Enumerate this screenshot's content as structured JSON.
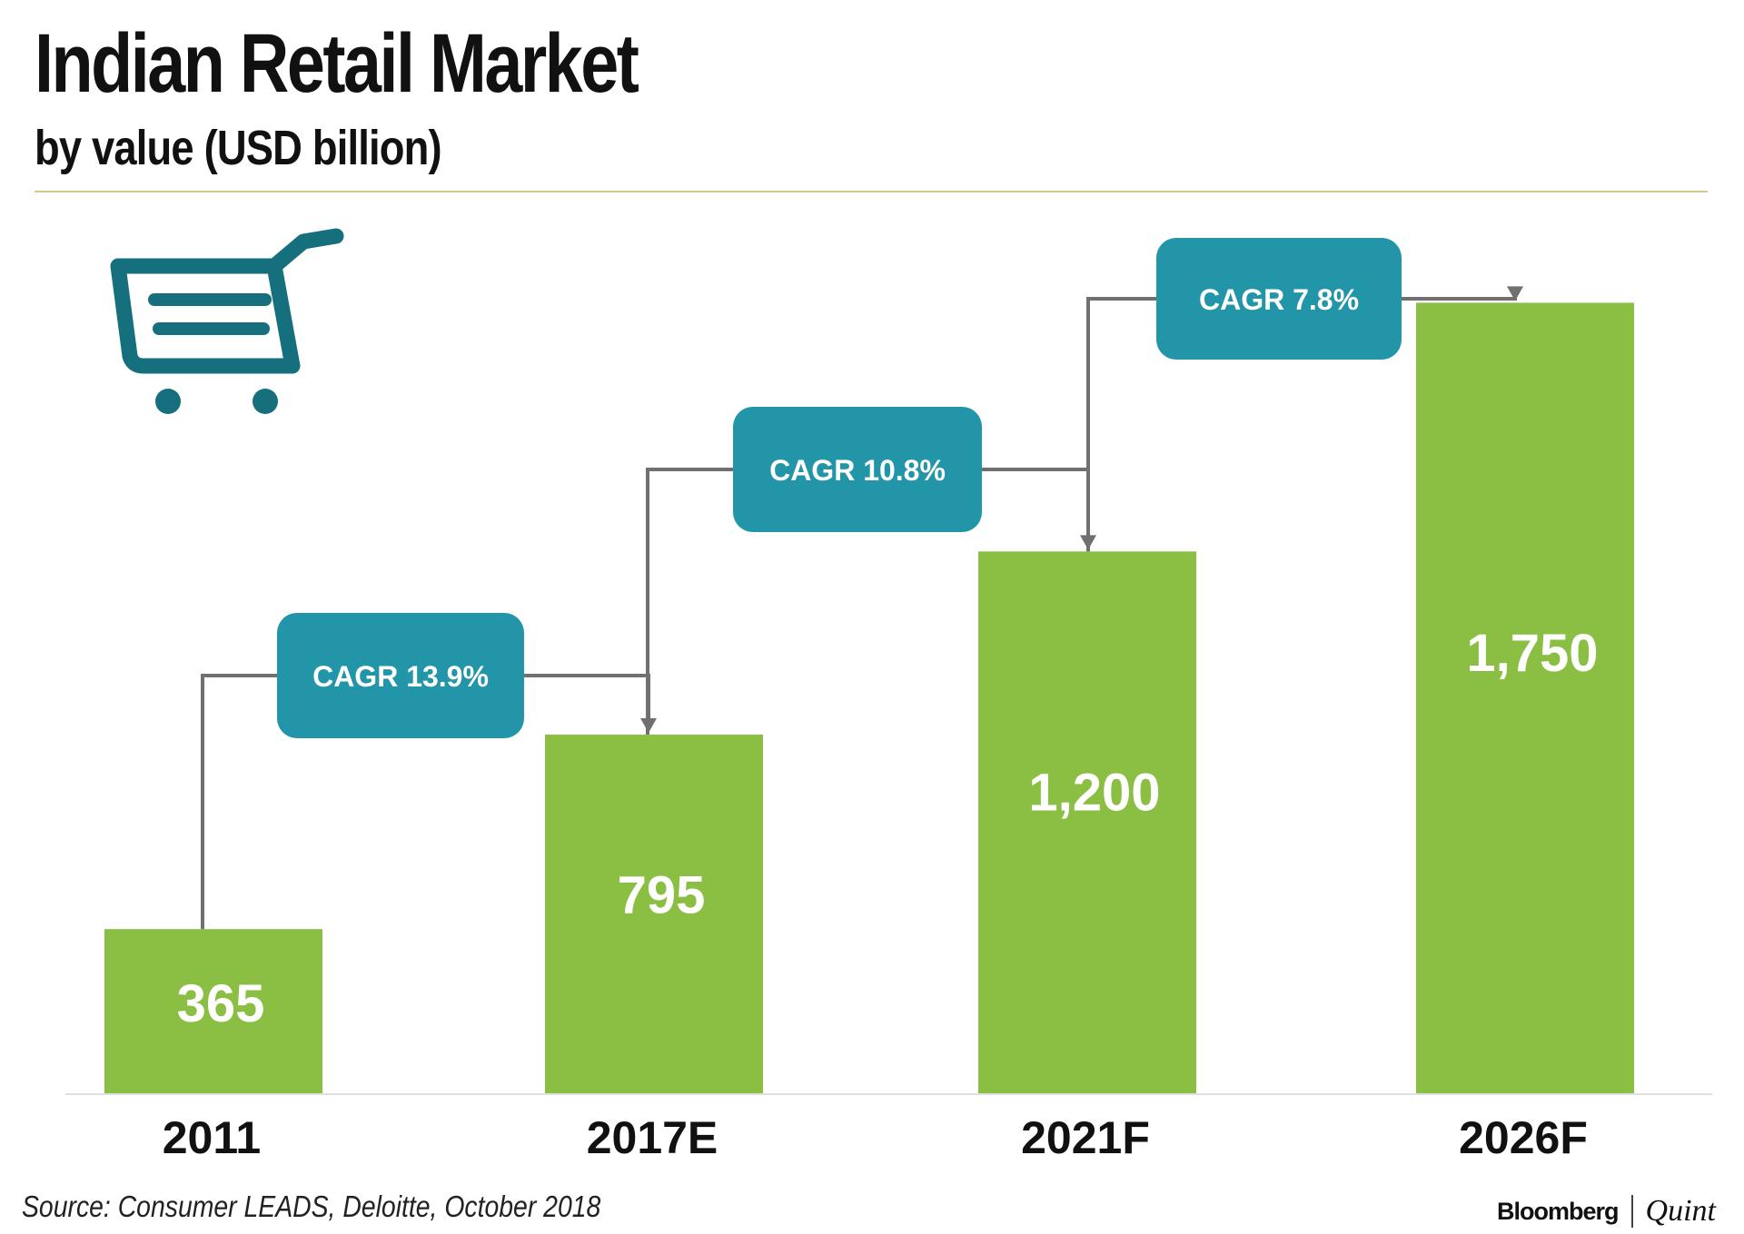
{
  "colors": {
    "bar": "#8abf43",
    "callout": "#2295a8",
    "cart": "#166f7c",
    "connector": "#707070",
    "rule": "#d9c78a"
  },
  "icon": "shopping-cart-icon",
  "source": "Source: Consumer LEADS, Deloitte, October 2018",
  "brand": {
    "name": "Bloomberg",
    "partner": "Quint"
  },
  "chart_data": {
    "type": "bar",
    "title": "Indian Retail Market",
    "subtitle": "by value (USD billion)",
    "categories": [
      "2011",
      "2017E",
      "2021F",
      "2026F"
    ],
    "values": [
      365,
      795,
      1200,
      1750
    ],
    "value_labels": [
      "365",
      "795",
      "1,200",
      "1,750"
    ],
    "ylim": [
      0,
      2050
    ],
    "grid": false,
    "annotations": [
      {
        "text": "CAGR 13.9%",
        "from": "2011",
        "to": "2017E"
      },
      {
        "text": "CAGR 10.8%",
        "from": "2017E",
        "to": "2021F"
      },
      {
        "text": "CAGR 7.8%",
        "from": "2021F",
        "to": "2026F"
      }
    ]
  }
}
